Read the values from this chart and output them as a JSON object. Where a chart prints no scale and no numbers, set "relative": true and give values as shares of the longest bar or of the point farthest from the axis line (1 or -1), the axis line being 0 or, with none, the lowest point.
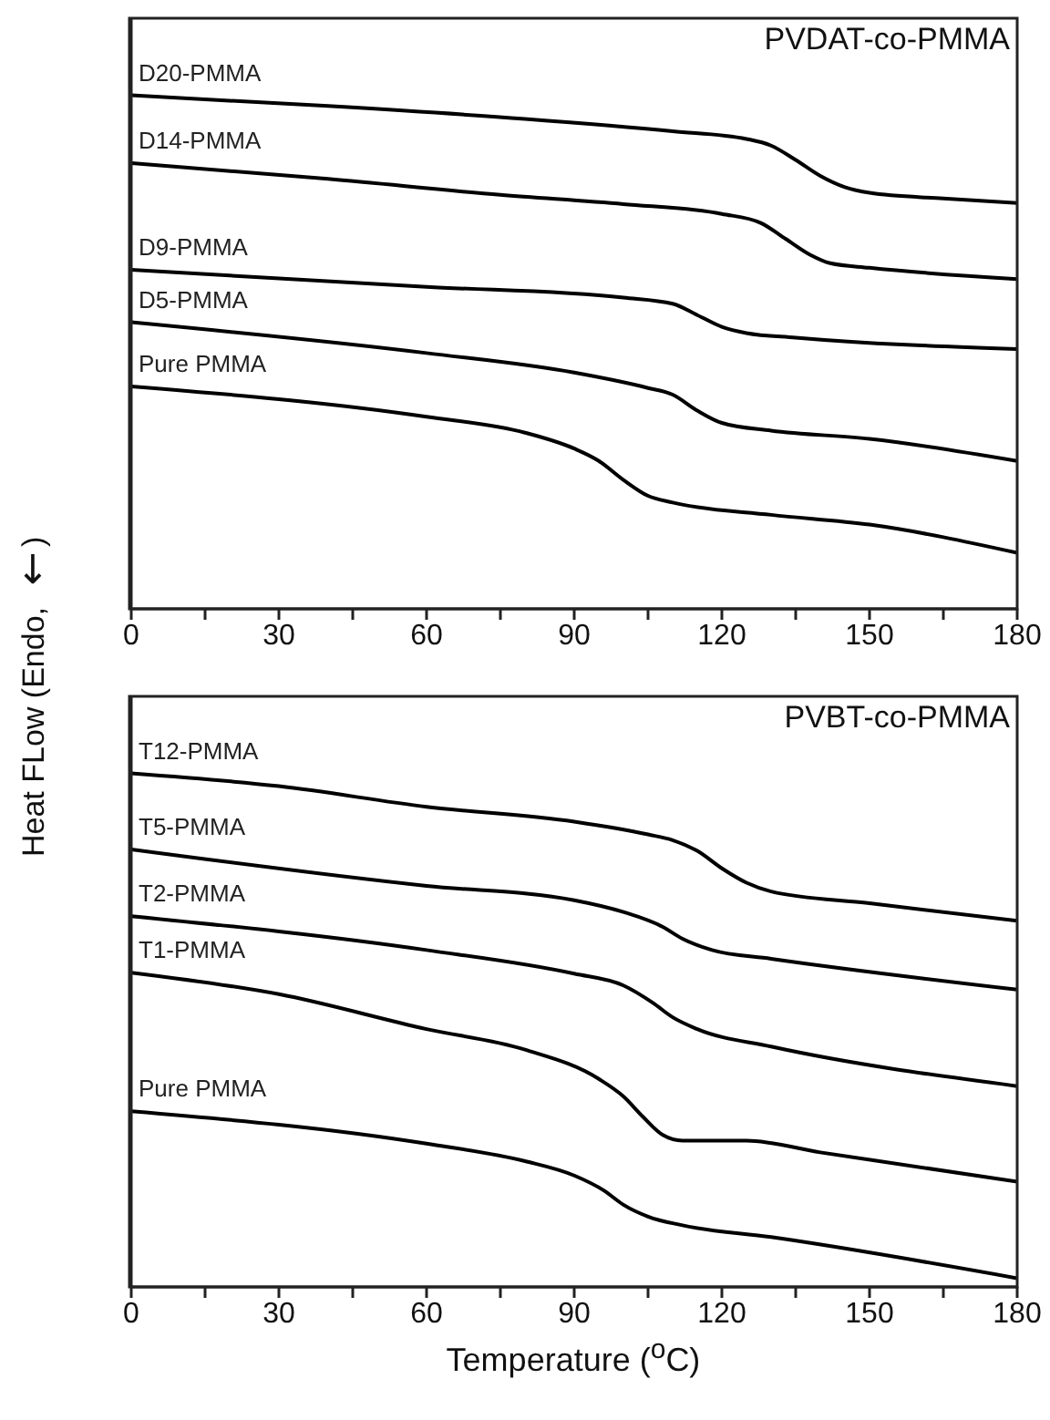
{
  "chart_data": [
    {
      "type": "line",
      "relative": true,
      "ylabel": "Heat FLow (Endo, ↓)",
      "annotations": [
        "PVDAT-co-PMMA"
      ],
      "xlim": [
        0,
        180
      ],
      "xticks": [
        0,
        {
          "value": 15,
          "label": null
        },
        30,
        {
          "value": 45,
          "label": null
        },
        60,
        {
          "value": 75,
          "label": null
        },
        90,
        {
          "value": 105,
          "label": null
        },
        120,
        {
          "value": 135,
          "label": null
        },
        150,
        {
          "value": 165,
          "label": null
        },
        180
      ],
      "tick_labels": "x",
      "line_style": "solid",
      "marker": "none",
      "series": [
        {
          "name": "D20-PMMA",
          "color": "#000000",
          "x": [
            0,
            40,
            80,
            110,
            125,
            130,
            135,
            140,
            145,
            150,
            165,
            180
          ],
          "values": [
            1.0,
            0.979,
            0.954,
            0.93,
            0.915,
            0.902,
            0.874,
            0.843,
            0.821,
            0.81,
            0.799,
            0.79
          ]
        },
        {
          "name": "D14-PMMA",
          "color": "#000000",
          "x": [
            0,
            40,
            75,
            100,
            120,
            128,
            133,
            138,
            142,
            150,
            180
          ],
          "values": [
            0.868,
            0.837,
            0.806,
            0.788,
            0.769,
            0.751,
            0.72,
            0.689,
            0.673,
            0.664,
            0.642
          ]
        },
        {
          "name": "D9-PMMA",
          "color": "#000000",
          "x": [
            0,
            60,
            100,
            110,
            115,
            120,
            125,
            135,
            180
          ],
          "values": [
            0.66,
            0.627,
            0.606,
            0.594,
            0.572,
            0.549,
            0.537,
            0.528,
            0.506
          ]
        },
        {
          "name": "D5-PMMA",
          "color": "#000000",
          "x": [
            0,
            60,
            90,
            105,
            110,
            115,
            120,
            130,
            150,
            180
          ],
          "values": [
            0.558,
            0.498,
            0.46,
            0.43,
            0.417,
            0.386,
            0.362,
            0.347,
            0.331,
            0.288
          ]
        },
        {
          "name": "Pure PMMA",
          "color": "#000000",
          "x": [
            0,
            60,
            80,
            90,
            95,
            100,
            105,
            110,
            130,
            150,
            180
          ],
          "values": [
            0.433,
            0.374,
            0.343,
            0.312,
            0.288,
            0.251,
            0.22,
            0.207,
            0.183,
            0.164,
            0.109
          ]
        }
      ]
    },
    {
      "type": "line",
      "relative": true,
      "xlabel": "Temperature ($^{o}$C)",
      "annotations": [
        "PVBT-co-PMMA"
      ],
      "xlim": [
        0,
        180
      ],
      "xticks": [
        0,
        {
          "value": 15,
          "label": null
        },
        30,
        {
          "value": 45,
          "label": null
        },
        60,
        {
          "value": 75,
          "label": null
        },
        90,
        {
          "value": 105,
          "label": null
        },
        120,
        {
          "value": 135,
          "label": null
        },
        150,
        {
          "value": 165,
          "label": null
        },
        180
      ],
      "tick_labels": "x",
      "line_style": "solid",
      "marker": "none",
      "series": [
        {
          "name": "T12-PMMA",
          "color": "#000000",
          "x": [
            0,
            30,
            60,
            90,
            105,
            110,
            115,
            120,
            125,
            130,
            150,
            180
          ],
          "values": [
            1.0,
            0.975,
            0.935,
            0.906,
            0.881,
            0.87,
            0.849,
            0.815,
            0.787,
            0.77,
            0.747,
            0.713
          ]
        },
        {
          "name": "T5-PMMA",
          "color": "#000000",
          "x": [
            0,
            60,
            90,
            100,
            108,
            112,
            118,
            130,
            180
          ],
          "values": [
            0.852,
            0.781,
            0.753,
            0.73,
            0.701,
            0.678,
            0.656,
            0.639,
            0.579
          ]
        },
        {
          "name": "T2-PMMA",
          "color": "#000000",
          "x": [
            0,
            60,
            90,
            100,
            106,
            110,
            115,
            130,
            180
          ],
          "values": [
            0.722,
            0.656,
            0.61,
            0.587,
            0.553,
            0.525,
            0.502,
            0.468,
            0.391
          ]
        },
        {
          "name": "T1-PMMA",
          "color": "#000000",
          "x": [
            0,
            30,
            60,
            80,
            95,
            100,
            104,
            108,
            112,
            125,
            140,
            180
          ],
          "values": [
            0.612,
            0.57,
            0.502,
            0.462,
            0.405,
            0.371,
            0.331,
            0.296,
            0.285,
            0.285,
            0.262,
            0.205
          ]
        },
        {
          "name": "Pure PMMA",
          "color": "#000000",
          "x": [
            0,
            60,
            80,
            90,
            96,
            100,
            105,
            112,
            130,
            180
          ],
          "values": [
            0.342,
            0.279,
            0.245,
            0.217,
            0.188,
            0.16,
            0.137,
            0.12,
            0.097,
            0.017
          ]
        }
      ]
    }
  ]
}
